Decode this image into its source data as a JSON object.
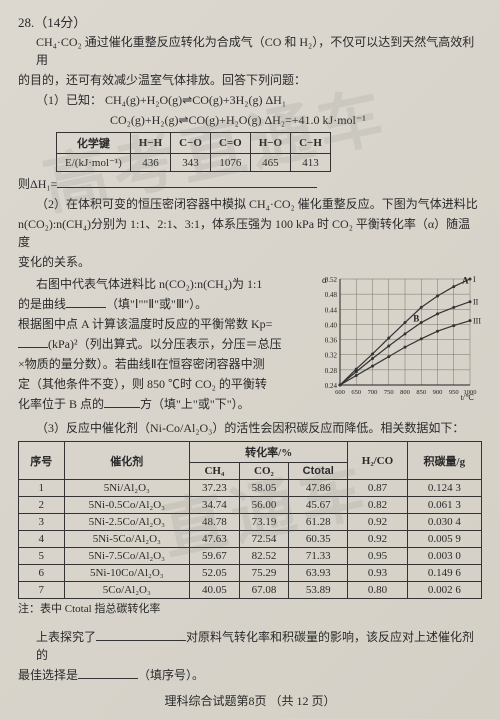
{
  "question": {
    "number": "28.（14分）",
    "intro1": "CH₄·CO₂ 通过催化重整反应转化为合成气（CO 和 H₂），不仅可以达到天然气高效利用",
    "intro2": "的目的，还可有效减少温室气体排放。回答下列问题：",
    "part1": {
      "label": "（1）已知：",
      "eq1": "CH₄(g)+H₂O(g)⇌CO(g)+3H₂(g)   ΔH₁",
      "eq2": "CO₂(g)+H₂(g)⇌CO(g)+H₂O(g)   ΔH₂=+41.0 kJ·mol⁻¹",
      "conclude": "则ΔH₁=",
      "bond_table": {
        "header_label": "化学键",
        "headers": [
          "H−H",
          "C−O",
          "C=O",
          "H−O",
          "C−H"
        ],
        "row_label": "E/(kJ·mol⁻¹)",
        "values": [
          "436",
          "343",
          "1076",
          "465",
          "413"
        ]
      }
    },
    "part2": {
      "head": "（2）在体积可变的恒压密闭容器中模拟 CH₄·CO₂ 催化重整反应。下图为气体进料比",
      "head2": "n(CO₂):n(CH₄)分别为 1:1、2:1、3:1，体系压强为 100 kPa 时 CO₂ 平衡转化率（α）随温度",
      "head3": "变化的关系。",
      "l1": "右图中代表气体进料比 n(CO₂):n(CH₄)为 1:1",
      "l2a": "的是曲线",
      "l2b": "（填\"Ⅰ\"\"Ⅱ\"或\"Ⅲ\"）。",
      "l3": "根据图中点 A 计算该温度时反应的平衡常数 Kp=",
      "l4a": "(kPa)²（列出算式。以分压表示，分压＝总压",
      "l5": "×物质的量分数）。若曲线Ⅱ在恒容密闭容器中测",
      "l6": "定（其他条件不变），则 850 ℃时 CO₂ 的平衡转",
      "l7a": "化率位于 B 点的",
      "l7b": "方（填\"上\"或\"下\"）。"
    },
    "chart": {
      "ylabel": "α",
      "yticks": [
        "0.52",
        "0.48",
        "0.44",
        "0.40",
        "0.36",
        "0.32",
        "0.28",
        "0.24"
      ],
      "xticks": [
        "600",
        "650",
        "700",
        "750",
        "800",
        "850",
        "900",
        "950",
        "1000"
      ],
      "xlabel": "t/℃",
      "grid_color": "#7a7268",
      "bg_color": "#d4cfc4",
      "line_color": "#333",
      "series": [
        {
          "name": "I",
          "points": [
            [
              600,
              0.24
            ],
            [
              650,
              0.282
            ],
            [
              700,
              0.322
            ],
            [
              750,
              0.364
            ],
            [
              800,
              0.405
            ],
            [
              850,
              0.445
            ],
            [
              900,
              0.475
            ],
            [
              950,
              0.5
            ],
            [
              1000,
              0.52
            ]
          ]
        },
        {
          "name": "II",
          "points": [
            [
              600,
              0.24
            ],
            [
              650,
              0.275
            ],
            [
              700,
              0.31
            ],
            [
              750,
              0.343
            ],
            [
              800,
              0.375
            ],
            [
              850,
              0.405
            ],
            [
              900,
              0.428
            ],
            [
              950,
              0.445
            ],
            [
              1000,
              0.46
            ]
          ]
        },
        {
          "name": "III",
          "points": [
            [
              600,
              0.24
            ],
            [
              650,
              0.265
            ],
            [
              700,
              0.29
            ],
            [
              750,
              0.315
            ],
            [
              800,
              0.34
            ],
            [
              850,
              0.362
            ],
            [
              900,
              0.382
            ],
            [
              950,
              0.397
            ],
            [
              1000,
              0.41
            ]
          ]
        }
      ],
      "markers": [
        {
          "label": "A",
          "x": 1000,
          "y": 0.5
        },
        {
          "label": "B",
          "x": 850,
          "y": 0.4
        }
      ]
    },
    "part3": "（3）反应中催化剂（Ni-Co/Al₂O₃）的活性会因积碳反应而降低。相关数据如下：",
    "catalyst_table": {
      "headers": {
        "col1": "序号",
        "col2": "催化剂",
        "group": "转化率/%",
        "sub": [
          "CH₄",
          "CO₂",
          "Ctotal"
        ],
        "col4": "H₂/CO",
        "col5": "积碳量/g"
      },
      "rows": [
        [
          "1",
          "5Ni/Al₂O₃",
          "37.23",
          "58.05",
          "47.86",
          "0.87",
          "0.124 3"
        ],
        [
          "2",
          "5Ni-0.5Co/Al₂O₃",
          "34.74",
          "56.00",
          "45.67",
          "0.82",
          "0.061 3"
        ],
        [
          "3",
          "5Ni-2.5Co/Al₂O₃",
          "48.78",
          "73.19",
          "61.28",
          "0.92",
          "0.030 4"
        ],
        [
          "4",
          "5Ni-5Co/Al₂O₃",
          "47.63",
          "72.54",
          "60.35",
          "0.92",
          "0.005 9"
        ],
        [
          "5",
          "5Ni-7.5Co/Al₂O₃",
          "59.67",
          "82.52",
          "71.33",
          "0.95",
          "0.003 0"
        ],
        [
          "6",
          "5Ni-10Co/Al₂O₃",
          "52.05",
          "75.29",
          "63.93",
          "0.93",
          "0.149 6"
        ],
        [
          "7",
          "5Co/Al₂O₃",
          "40.05",
          "67.08",
          "53.89",
          "0.80",
          "0.002 6"
        ]
      ],
      "note": "注：表中 Ctotal 指总碳转化率"
    },
    "conclusion1a": "上表探究了",
    "conclusion1b": "对原料气转化率和积碳量的影响，该反应对上述催化剂的",
    "conclusion2a": "最佳选择是",
    "conclusion2b": "（填序号）。",
    "footer": "理科综合试题第8页 （共 12 页）"
  },
  "watermarks": {
    "w1": "高考直通车",
    "w2": "直通车"
  }
}
